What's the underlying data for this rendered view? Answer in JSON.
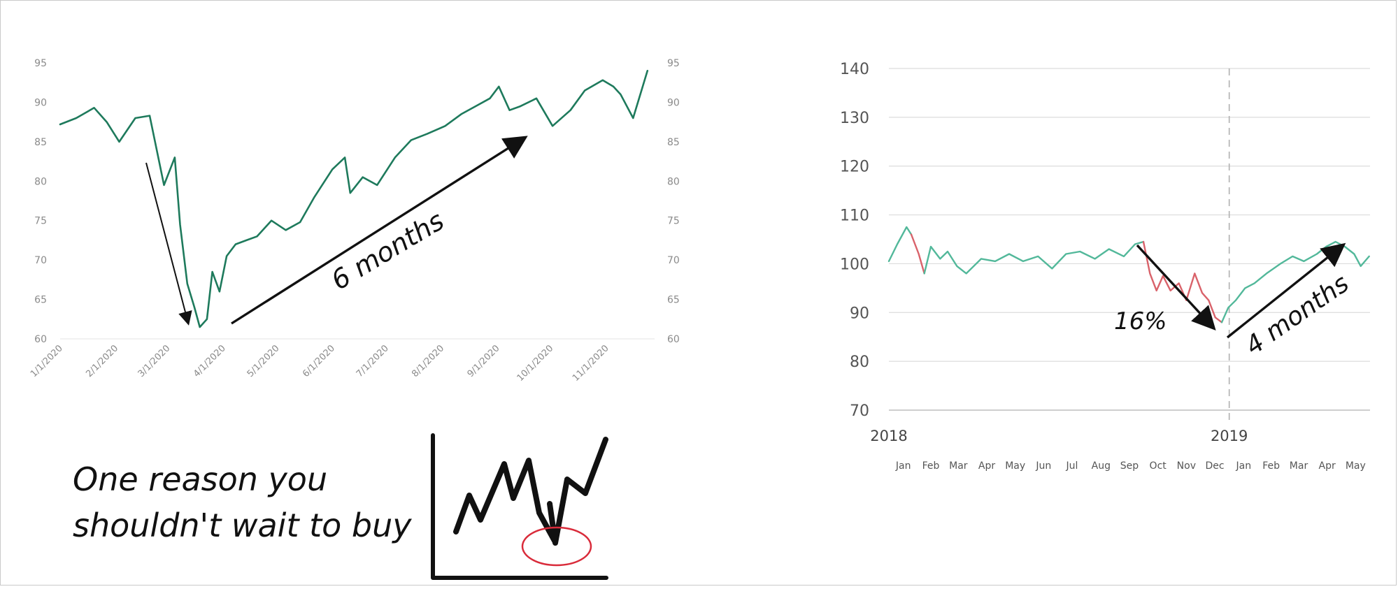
{
  "colors": {
    "line_green_dark": "#1e7a5c",
    "line_green_light": "#52b89a",
    "line_red": "#d9626a",
    "grid": "#dcdcdc",
    "tick_text": "#8a8a8a",
    "ink": "#111111",
    "circle_red": "#d92b3a"
  },
  "caption": {
    "line1": "One reason you",
    "line2": "shouldn't wait to buy"
  },
  "icon": "sketch-line-chart-dip-circled-icon",
  "chart_data": [
    {
      "type": "line",
      "title": "",
      "xlabel": "",
      "ylabel": "",
      "ylim": [
        60,
        95
      ],
      "y_ticks": [
        "60",
        "65",
        "70",
        "75",
        "80",
        "85",
        "90",
        "95"
      ],
      "x_tick_labels": [
        "1/1/2020",
        "2/1/2020",
        "3/1/2020",
        "4/1/2020",
        "5/1/2020",
        "6/1/2020",
        "7/1/2020",
        "8/1/2020",
        "9/1/2020",
        "10/1/2020",
        "11/1/2020"
      ],
      "grid": false,
      "secondary_y_axis": true,
      "series": [
        {
          "x": [
            "2020-01-01",
            "2020-01-10",
            "2020-01-20",
            "2020-01-27",
            "2020-02-03",
            "2020-02-12",
            "2020-02-20",
            "2020-02-28",
            "2020-03-05",
            "2020-03-08",
            "2020-03-12",
            "2020-03-16",
            "2020-03-19",
            "2020-03-23",
            "2020-03-26",
            "2020-03-30",
            "2020-04-03",
            "2020-04-08",
            "2020-04-14",
            "2020-04-20",
            "2020-04-28",
            "2020-05-06",
            "2020-05-14",
            "2020-05-22",
            "2020-06-01",
            "2020-06-08",
            "2020-06-11",
            "2020-06-18",
            "2020-06-26",
            "2020-07-06",
            "2020-07-15",
            "2020-07-24",
            "2020-08-03",
            "2020-08-12",
            "2020-08-20",
            "2020-08-28",
            "2020-09-02",
            "2020-09-08",
            "2020-09-14",
            "2020-09-23",
            "2020-10-02",
            "2020-10-12",
            "2020-10-20",
            "2020-10-30",
            "2020-11-05",
            "2020-11-09",
            "2020-11-16",
            "2020-11-24"
          ],
          "values": [
            87.2,
            88.0,
            89.3,
            87.5,
            85.0,
            88.0,
            88.3,
            79.5,
            83.0,
            74.5,
            67.0,
            64.0,
            61.5,
            62.5,
            68.5,
            66.0,
            70.5,
            72.0,
            72.5,
            73.0,
            75.0,
            73.8,
            74.8,
            78.0,
            81.5,
            83.0,
            78.5,
            80.5,
            79.5,
            83.0,
            85.2,
            86.0,
            87.0,
            88.5,
            89.5,
            90.5,
            92.0,
            89.0,
            89.5,
            90.5,
            87.0,
            89.0,
            91.5,
            92.8,
            92.0,
            91.0,
            88.0,
            94.0
          ]
        }
      ],
      "annotations": [
        {
          "text": "6 months"
        }
      ]
    },
    {
      "type": "line",
      "title": "",
      "xlabel": "",
      "ylabel": "",
      "ylim": [
        70,
        140
      ],
      "y_ticks": [
        "70",
        "80",
        "90",
        "100",
        "110",
        "120",
        "130",
        "140"
      ],
      "year_labels": [
        "2018",
        "2019"
      ],
      "month_labels": [
        "Jan",
        "Feb",
        "Mar",
        "Apr",
        "May",
        "Jun",
        "Jul",
        "Aug",
        "Sep",
        "Oct",
        "Nov",
        "Dec",
        "Jan",
        "Feb",
        "Mar",
        "Apr",
        "May"
      ],
      "grid": true,
      "vline_at": "2019-01-01",
      "series": [
        {
          "segment": "rise",
          "x": [
            "2018-01-01",
            "2018-01-10",
            "2018-01-20",
            "2018-01-25"
          ],
          "values": [
            100.5,
            104.0,
            107.5,
            106.0
          ]
        },
        {
          "segment": "decline",
          "x": [
            "2018-01-25",
            "2018-02-02",
            "2018-02-08"
          ],
          "values": [
            106.0,
            102.0,
            98.0
          ]
        },
        {
          "segment": "plateau",
          "x": [
            "2018-02-08",
            "2018-02-15",
            "2018-02-25",
            "2018-03-05",
            "2018-03-15",
            "2018-03-25",
            "2018-04-10",
            "2018-04-25",
            "2018-05-10",
            "2018-05-25",
            "2018-06-10",
            "2018-06-25",
            "2018-07-10",
            "2018-07-25",
            "2018-08-10",
            "2018-08-25",
            "2018-09-10",
            "2018-09-22",
            "2018-10-01"
          ],
          "values": [
            98.0,
            103.5,
            101.0,
            102.5,
            99.5,
            98.0,
            101.0,
            100.5,
            102.0,
            100.5,
            101.5,
            99.0,
            102.0,
            102.5,
            101.0,
            103.0,
            101.5,
            104.0,
            104.5
          ]
        },
        {
          "segment": "decline",
          "x": [
            "2018-10-01",
            "2018-10-08",
            "2018-10-15",
            "2018-10-22",
            "2018-10-30",
            "2018-11-08",
            "2018-11-16",
            "2018-11-25",
            "2018-12-03",
            "2018-12-10",
            "2018-12-17",
            "2018-12-24"
          ],
          "values": [
            104.5,
            98.0,
            94.5,
            97.5,
            94.5,
            96.0,
            92.5,
            98.0,
            94.0,
            92.5,
            89.0,
            88.0
          ]
        },
        {
          "segment": "recovery",
          "x": [
            "2018-12-24",
            "2018-12-31",
            "2019-01-08",
            "2019-01-18",
            "2019-01-28",
            "2019-02-10",
            "2019-02-25",
            "2019-03-10",
            "2019-03-22",
            "2019-04-05",
            "2019-04-15",
            "2019-04-25",
            "2019-05-05",
            "2019-05-15",
            "2019-05-22",
            "2019-05-31"
          ],
          "values": [
            88.0,
            91.0,
            92.5,
            95.0,
            96.0,
            98.0,
            100.0,
            101.5,
            100.5,
            102.0,
            103.5,
            104.5,
            103.5,
            102.0,
            99.5,
            101.5
          ]
        }
      ],
      "annotations": [
        {
          "text": "16%"
        },
        {
          "text": "4 months"
        }
      ]
    }
  ]
}
